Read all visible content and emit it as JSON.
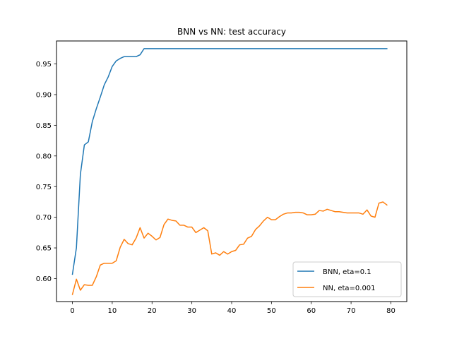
{
  "chart_data": {
    "type": "line",
    "title": "BNN vs NN: test accuracy",
    "xlabel": "",
    "ylabel": "",
    "xlim": [
      -4,
      84
    ],
    "ylim": [
      0.5625,
      0.9875
    ],
    "xticks": [
      0,
      10,
      20,
      30,
      40,
      50,
      60,
      70,
      80
    ],
    "yticks": [
      0.6,
      0.65,
      0.7,
      0.75,
      0.8,
      0.85,
      0.9,
      0.95
    ],
    "ytick_labels": [
      "0.60",
      "0.65",
      "0.70",
      "0.75",
      "0.80",
      "0.85",
      "0.90",
      "0.95"
    ],
    "grid": false,
    "legend_position": "lower-right",
    "series": [
      {
        "name": "BNN, eta=0.1",
        "color": "#1f77b4",
        "values": [
          0.607,
          0.65,
          0.77,
          0.818,
          0.823,
          0.856,
          0.877,
          0.896,
          0.916,
          0.929,
          0.946,
          0.955,
          0.959,
          0.962,
          0.962,
          0.962,
          0.962,
          0.965,
          0.975,
          0.975,
          0.975,
          0.975,
          0.975,
          0.975,
          0.975,
          0.975,
          0.975,
          0.975,
          0.975,
          0.975,
          0.975,
          0.975,
          0.975,
          0.975,
          0.975,
          0.975,
          0.975,
          0.975,
          0.975,
          0.975,
          0.975,
          0.975,
          0.975,
          0.975,
          0.975,
          0.975,
          0.975,
          0.975,
          0.975,
          0.975,
          0.975,
          0.975,
          0.975,
          0.975,
          0.975,
          0.975,
          0.975,
          0.975,
          0.975,
          0.975,
          0.975,
          0.975,
          0.975,
          0.975,
          0.975,
          0.975,
          0.975,
          0.975,
          0.975,
          0.975,
          0.975,
          0.975,
          0.975,
          0.975,
          0.975,
          0.975,
          0.975,
          0.975,
          0.975,
          0.975
        ]
      },
      {
        "name": "NN, eta=0.001",
        "color": "#ff7f0e",
        "values": [
          0.574,
          0.599,
          0.581,
          0.59,
          0.589,
          0.589,
          0.603,
          0.622,
          0.625,
          0.625,
          0.625,
          0.629,
          0.651,
          0.664,
          0.657,
          0.655,
          0.666,
          0.683,
          0.666,
          0.674,
          0.669,
          0.663,
          0.667,
          0.688,
          0.697,
          0.695,
          0.694,
          0.687,
          0.687,
          0.684,
          0.684,
          0.675,
          0.679,
          0.683,
          0.678,
          0.64,
          0.642,
          0.638,
          0.644,
          0.64,
          0.644,
          0.646,
          0.655,
          0.656,
          0.666,
          0.669,
          0.68,
          0.686,
          0.694,
          0.7,
          0.696,
          0.696,
          0.701,
          0.705,
          0.707,
          0.707,
          0.708,
          0.708,
          0.707,
          0.704,
          0.704,
          0.705,
          0.711,
          0.71,
          0.713,
          0.711,
          0.709,
          0.709,
          0.708,
          0.707,
          0.707,
          0.707,
          0.707,
          0.705,
          0.712,
          0.702,
          0.7,
          0.723,
          0.725,
          0.72
        ]
      }
    ]
  }
}
